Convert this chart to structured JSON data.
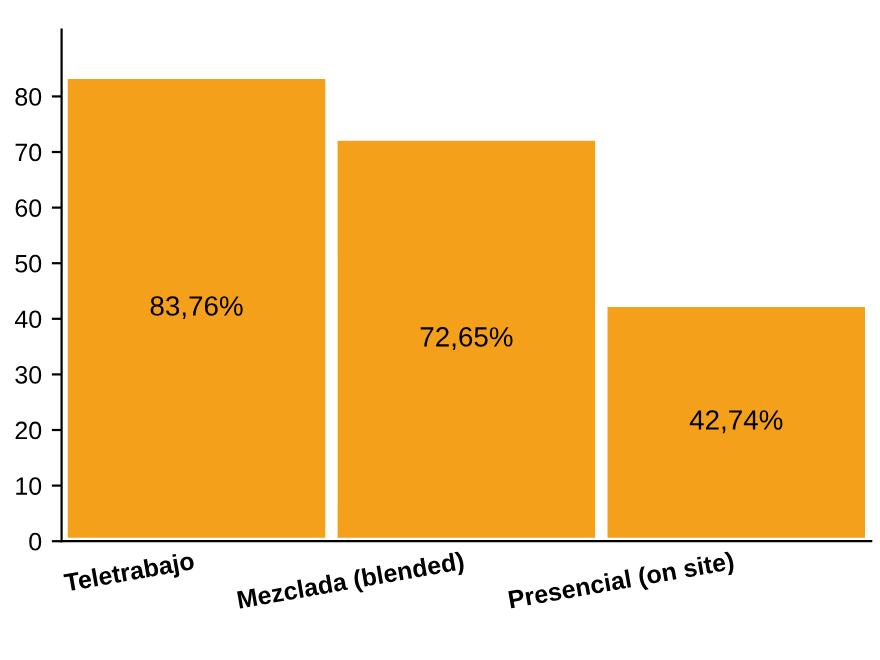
{
  "chart_data": {
    "type": "bar",
    "categories": [
      "Teletrabajo",
      "Mezclada (blended)",
      "Presencial (on site)"
    ],
    "values": [
      83.76,
      72.65,
      42.74
    ],
    "value_labels": [
      "83,76%",
      "72,65%",
      "42,74%"
    ],
    "color": "#f5a01a",
    "ylim": [
      0,
      92
    ],
    "yticks": [
      0,
      10,
      20,
      30,
      40,
      50,
      60,
      70,
      80
    ],
    "grid": false
  }
}
